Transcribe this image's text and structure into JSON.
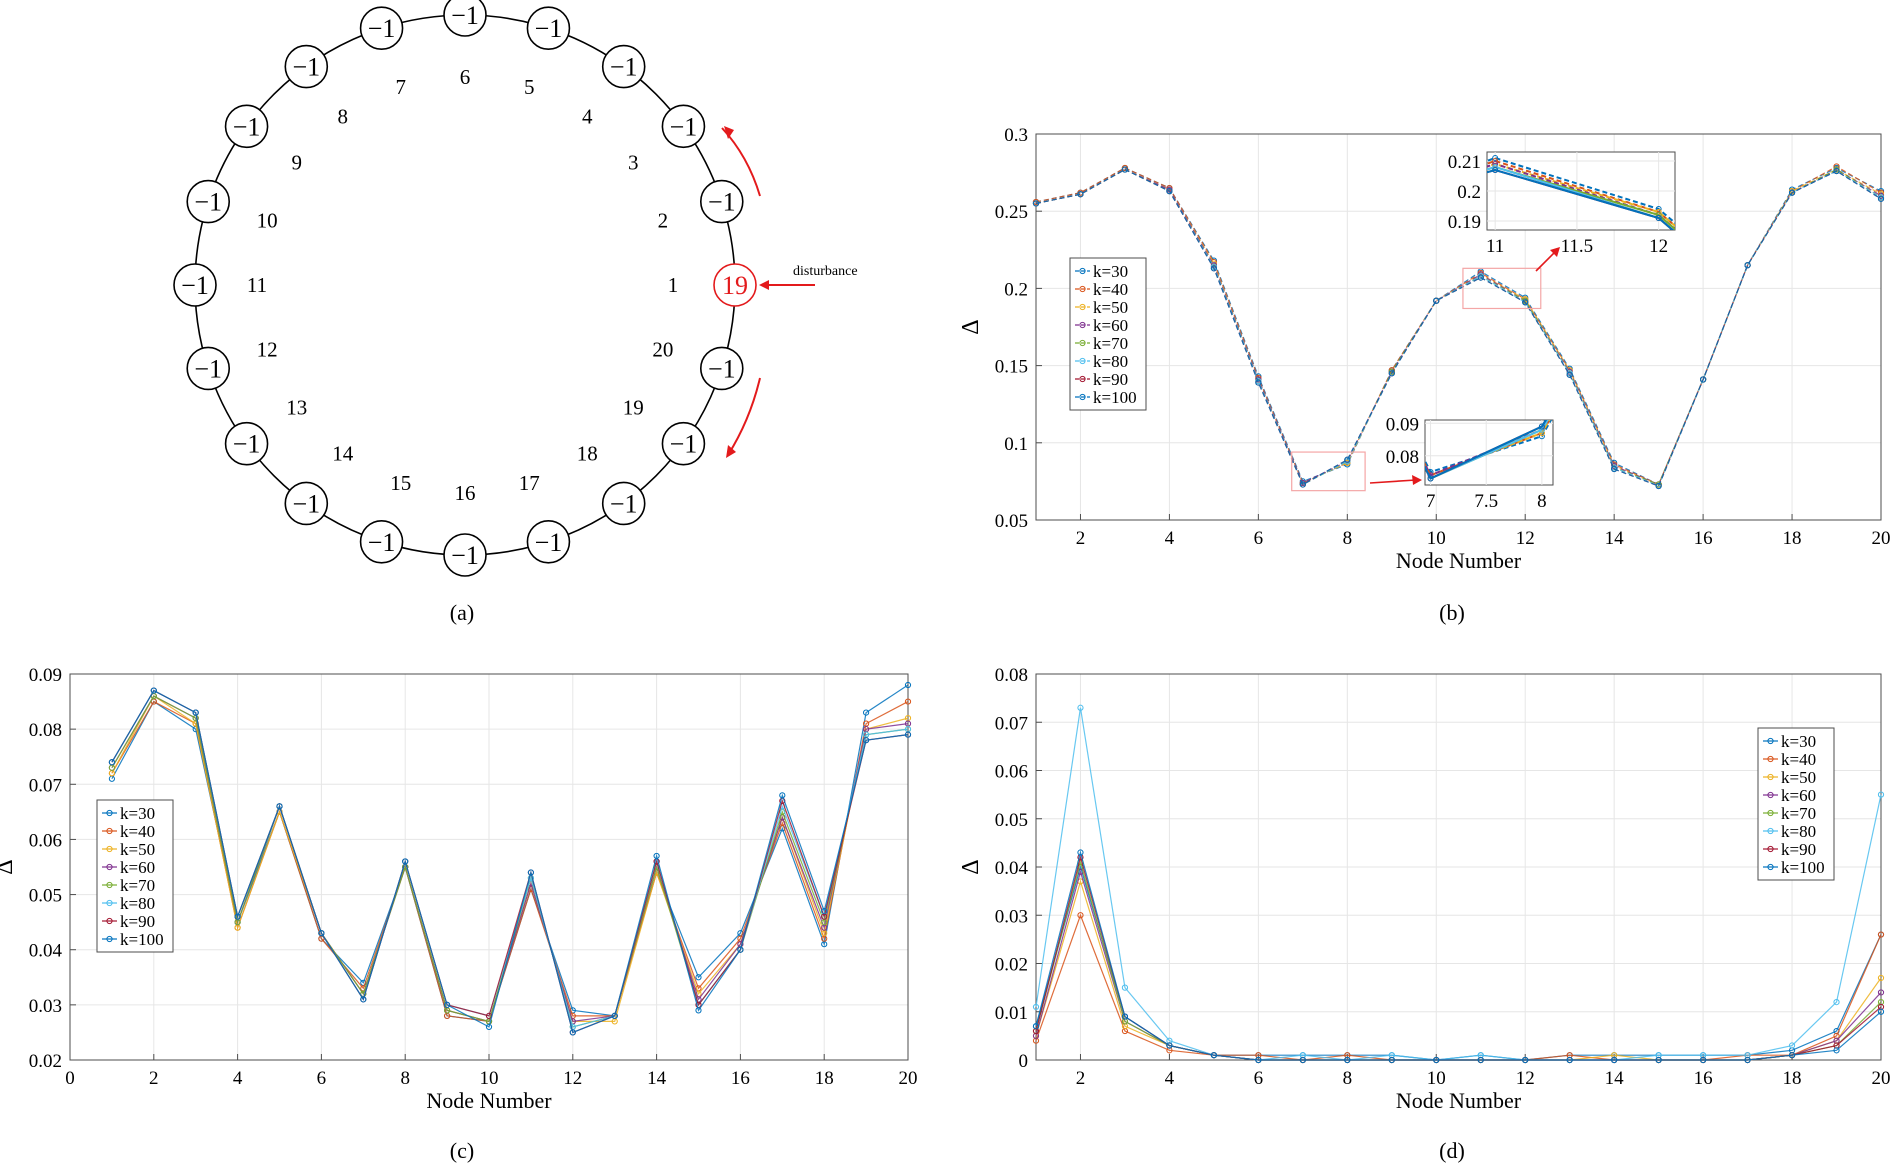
{
  "colors": {
    "series": [
      "#0072BD",
      "#D95319",
      "#EDB120",
      "#7E2F8E",
      "#77AC30",
      "#4DBEEE",
      "#A2142F",
      "#0072BD"
    ],
    "ring": "#000000",
    "highlight": "#e31a1c",
    "zoom_box": "#f4a6a6",
    "grid": "#e6e6e6"
  },
  "panel_a": {
    "caption": "(a)",
    "node_labels": [
      "1",
      "2",
      "3",
      "4",
      "5",
      "6",
      "7",
      "8",
      "9",
      "10",
      "11",
      "12",
      "13",
      "14",
      "15",
      "16",
      "17",
      "18",
      "19",
      "20"
    ],
    "node_values": [
      "19",
      "−1",
      "−1",
      "−1",
      "−1",
      "−1",
      "−1",
      "−1",
      "−1",
      "−1",
      "−1",
      "−1",
      "−1",
      "−1",
      "−1",
      "−1",
      "−1",
      "−1",
      "−1",
      "−1"
    ],
    "highlight_node": 1,
    "disturbance_label": "disturbance"
  },
  "chart_data": [
    {
      "id": "b",
      "type": "line",
      "caption": "(b)",
      "xlabel": "Node Number",
      "ylabel": "Δ",
      "xlim": [
        1,
        20
      ],
      "ylim": [
        0.05,
        0.3
      ],
      "xticks": [
        2,
        4,
        6,
        8,
        10,
        12,
        14,
        16,
        18,
        20
      ],
      "yticks": [
        0.05,
        0.1,
        0.15,
        0.2,
        0.25,
        0.3
      ],
      "grid": true,
      "legend_position": "left-middle",
      "x": [
        1,
        2,
        3,
        4,
        5,
        6,
        7,
        8,
        9,
        10,
        11,
        12,
        13,
        14,
        15,
        16,
        17,
        18,
        19,
        20
      ],
      "series": [
        {
          "name": "k=30",
          "values": [
            0.256,
            0.262,
            0.278,
            0.265,
            0.218,
            0.143,
            0.075,
            0.086,
            0.147,
            0.192,
            0.211,
            0.194,
            0.148,
            0.087,
            0.073,
            0.141,
            0.215,
            0.264,
            0.278,
            0.263
          ]
        },
        {
          "name": "k=40",
          "values": [
            0.256,
            0.262,
            0.278,
            0.265,
            0.217,
            0.142,
            0.074,
            0.087,
            0.147,
            0.192,
            0.21,
            0.193,
            0.147,
            0.086,
            0.073,
            0.141,
            0.215,
            0.263,
            0.279,
            0.262
          ]
        },
        {
          "name": "k=50",
          "values": [
            0.255,
            0.261,
            0.277,
            0.264,
            0.216,
            0.141,
            0.074,
            0.087,
            0.146,
            0.192,
            0.209,
            0.193,
            0.147,
            0.085,
            0.073,
            0.141,
            0.215,
            0.263,
            0.277,
            0.261
          ]
        },
        {
          "name": "k=60",
          "values": [
            0.255,
            0.261,
            0.277,
            0.264,
            0.215,
            0.141,
            0.074,
            0.088,
            0.146,
            0.192,
            0.209,
            0.192,
            0.146,
            0.085,
            0.073,
            0.141,
            0.215,
            0.262,
            0.277,
            0.26
          ]
        },
        {
          "name": "k=70",
          "values": [
            0.255,
            0.261,
            0.277,
            0.263,
            0.214,
            0.14,
            0.073,
            0.088,
            0.146,
            0.192,
            0.208,
            0.192,
            0.145,
            0.084,
            0.073,
            0.141,
            0.215,
            0.262,
            0.277,
            0.259
          ]
        },
        {
          "name": "k=80",
          "values": [
            0.255,
            0.261,
            0.277,
            0.263,
            0.214,
            0.14,
            0.073,
            0.088,
            0.145,
            0.192,
            0.208,
            0.191,
            0.145,
            0.084,
            0.072,
            0.141,
            0.215,
            0.262,
            0.276,
            0.259
          ]
        },
        {
          "name": "k=90",
          "values": [
            0.255,
            0.261,
            0.277,
            0.263,
            0.213,
            0.139,
            0.073,
            0.089,
            0.145,
            0.192,
            0.207,
            0.191,
            0.144,
            0.083,
            0.072,
            0.141,
            0.215,
            0.262,
            0.276,
            0.258
          ]
        },
        {
          "name": "k=100",
          "values": [
            0.255,
            0.261,
            0.277,
            0.263,
            0.213,
            0.139,
            0.073,
            0.089,
            0.145,
            0.192,
            0.207,
            0.191,
            0.144,
            0.083,
            0.072,
            0.141,
            0.215,
            0.262,
            0.276,
            0.258
          ]
        }
      ],
      "insets": [
        {
          "xlim": [
            10.95,
            12.1
          ],
          "ylim": [
            0.187,
            0.213
          ],
          "xticks": [
            11,
            11.5,
            12
          ],
          "yticks": [
            0.19,
            0.2,
            0.21
          ]
        },
        {
          "xlim": [
            6.95,
            8.1
          ],
          "ylim": [
            0.071,
            0.091
          ],
          "xticks": [
            7,
            7.5,
            8
          ],
          "yticks": [
            0.08,
            0.09
          ]
        }
      ]
    },
    {
      "id": "c",
      "type": "line",
      "caption": "(c)",
      "xlabel": "Node Number",
      "ylabel": "Δ",
      "xlim": [
        0,
        20
      ],
      "ylim": [
        0.02,
        0.09
      ],
      "xticks": [
        0,
        2,
        4,
        6,
        8,
        10,
        12,
        14,
        16,
        18,
        20
      ],
      "yticks": [
        0.02,
        0.03,
        0.04,
        0.05,
        0.06,
        0.07,
        0.08,
        0.09
      ],
      "grid": true,
      "legend_position": "left-middle",
      "x": [
        1,
        2,
        3,
        4,
        5,
        6,
        7,
        8,
        9,
        10,
        11,
        12,
        13,
        14,
        15,
        16,
        17,
        18,
        19,
        20
      ],
      "series": [
        {
          "name": "k=30",
          "values": [
            0.071,
            0.085,
            0.08,
            0.045,
            0.065,
            0.042,
            0.034,
            0.055,
            0.028,
            0.027,
            0.051,
            0.029,
            0.028,
            0.054,
            0.035,
            0.043,
            0.062,
            0.041,
            0.083,
            0.088
          ]
        },
        {
          "name": "k=40",
          "values": [
            0.072,
            0.085,
            0.081,
            0.044,
            0.065,
            0.042,
            0.033,
            0.055,
            0.028,
            0.027,
            0.051,
            0.028,
            0.028,
            0.054,
            0.033,
            0.042,
            0.063,
            0.042,
            0.081,
            0.085
          ]
        },
        {
          "name": "k=50",
          "values": [
            0.072,
            0.086,
            0.081,
            0.044,
            0.065,
            0.043,
            0.032,
            0.055,
            0.029,
            0.027,
            0.052,
            0.027,
            0.027,
            0.054,
            0.032,
            0.041,
            0.064,
            0.043,
            0.08,
            0.082
          ]
        },
        {
          "name": "k=60",
          "values": [
            0.073,
            0.086,
            0.082,
            0.045,
            0.066,
            0.043,
            0.032,
            0.055,
            0.029,
            0.027,
            0.052,
            0.027,
            0.028,
            0.055,
            0.031,
            0.041,
            0.064,
            0.044,
            0.08,
            0.081
          ]
        },
        {
          "name": "k=70",
          "values": [
            0.073,
            0.086,
            0.082,
            0.045,
            0.066,
            0.043,
            0.032,
            0.055,
            0.029,
            0.027,
            0.053,
            0.026,
            0.028,
            0.055,
            0.03,
            0.04,
            0.065,
            0.045,
            0.079,
            0.08
          ]
        },
        {
          "name": "k=80",
          "values": [
            0.074,
            0.087,
            0.083,
            0.046,
            0.066,
            0.043,
            0.031,
            0.056,
            0.03,
            0.028,
            0.053,
            0.026,
            0.028,
            0.056,
            0.03,
            0.04,
            0.066,
            0.046,
            0.079,
            0.08
          ]
        },
        {
          "name": "k=90",
          "values": [
            0.074,
            0.087,
            0.083,
            0.046,
            0.066,
            0.043,
            0.031,
            0.056,
            0.03,
            0.028,
            0.054,
            0.025,
            0.028,
            0.056,
            0.03,
            0.04,
            0.067,
            0.046,
            0.078,
            0.079
          ]
        },
        {
          "name": "k=100",
          "values": [
            0.074,
            0.087,
            0.083,
            0.046,
            0.066,
            0.043,
            0.031,
            0.056,
            0.03,
            0.026,
            0.054,
            0.025,
            0.028,
            0.057,
            0.029,
            0.04,
            0.068,
            0.047,
            0.078,
            0.079
          ]
        }
      ]
    },
    {
      "id": "d",
      "type": "line",
      "caption": "(d)",
      "xlabel": "Node Number",
      "ylabel": "Δ",
      "xlim": [
        1,
        20
      ],
      "ylim": [
        0,
        0.08
      ],
      "xticks": [
        2,
        4,
        6,
        8,
        10,
        12,
        14,
        16,
        18,
        20
      ],
      "yticks": [
        0,
        0.01,
        0.02,
        0.03,
        0.04,
        0.05,
        0.06,
        0.07,
        0.08
      ],
      "grid": true,
      "legend_position": "right-middle",
      "x": [
        1,
        2,
        3,
        4,
        5,
        6,
        7,
        8,
        9,
        10,
        11,
        12,
        13,
        14,
        15,
        16,
        17,
        18,
        19,
        20
      ],
      "series": [
        {
          "name": "k=30",
          "values": [
            0.007,
            0.04,
            0.009,
            0.003,
            0.001,
            0.001,
            0.001,
            0.001,
            0.001,
            0.0,
            0.001,
            0.0,
            0.001,
            0.001,
            0.001,
            0.001,
            0.001,
            0.002,
            0.006,
            0.026
          ]
        },
        {
          "name": "k=40",
          "values": [
            0.004,
            0.03,
            0.006,
            0.002,
            0.001,
            0.001,
            0.0,
            0.001,
            0.0,
            0.0,
            0.0,
            0.0,
            0.001,
            0.0,
            0.0,
            0.0,
            0.001,
            0.001,
            0.005,
            0.026
          ]
        },
        {
          "name": "k=50",
          "values": [
            0.005,
            0.037,
            0.007,
            0.003,
            0.001,
            0.0,
            0.0,
            0.0,
            0.0,
            0.0,
            0.0,
            0.0,
            0.0,
            0.001,
            0.0,
            0.0,
            0.0,
            0.001,
            0.004,
            0.017
          ]
        },
        {
          "name": "k=60",
          "values": [
            0.005,
            0.039,
            0.008,
            0.003,
            0.001,
            0.0,
            0.0,
            0.0,
            0.0,
            0.0,
            0.0,
            0.0,
            0.0,
            0.0,
            0.0,
            0.0,
            0.0,
            0.001,
            0.004,
            0.014
          ]
        },
        {
          "name": "k=70",
          "values": [
            0.006,
            0.041,
            0.008,
            0.003,
            0.001,
            0.0,
            0.0,
            0.0,
            0.0,
            0.0,
            0.0,
            0.0,
            0.0,
            0.0,
            0.0,
            0.0,
            0.0,
            0.001,
            0.003,
            0.012
          ]
        },
        {
          "name": "k=80",
          "values": [
            0.011,
            0.073,
            0.015,
            0.004,
            0.001,
            0.0,
            0.001,
            0.0,
            0.001,
            0.0,
            0.001,
            0.0,
            0.0,
            0.0,
            0.001,
            0.001,
            0.001,
            0.003,
            0.012,
            0.055
          ]
        },
        {
          "name": "k=90",
          "values": [
            0.006,
            0.042,
            0.009,
            0.003,
            0.001,
            0.0,
            0.0,
            0.0,
            0.0,
            0.0,
            0.0,
            0.0,
            0.0,
            0.0,
            0.0,
            0.0,
            0.0,
            0.001,
            0.003,
            0.011
          ]
        },
        {
          "name": "k=100",
          "values": [
            0.007,
            0.043,
            0.009,
            0.003,
            0.001,
            0.0,
            0.0,
            0.0,
            0.0,
            0.0,
            0.0,
            0.0,
            0.0,
            0.0,
            0.0,
            0.0,
            0.0,
            0.001,
            0.002,
            0.01
          ]
        }
      ]
    }
  ]
}
